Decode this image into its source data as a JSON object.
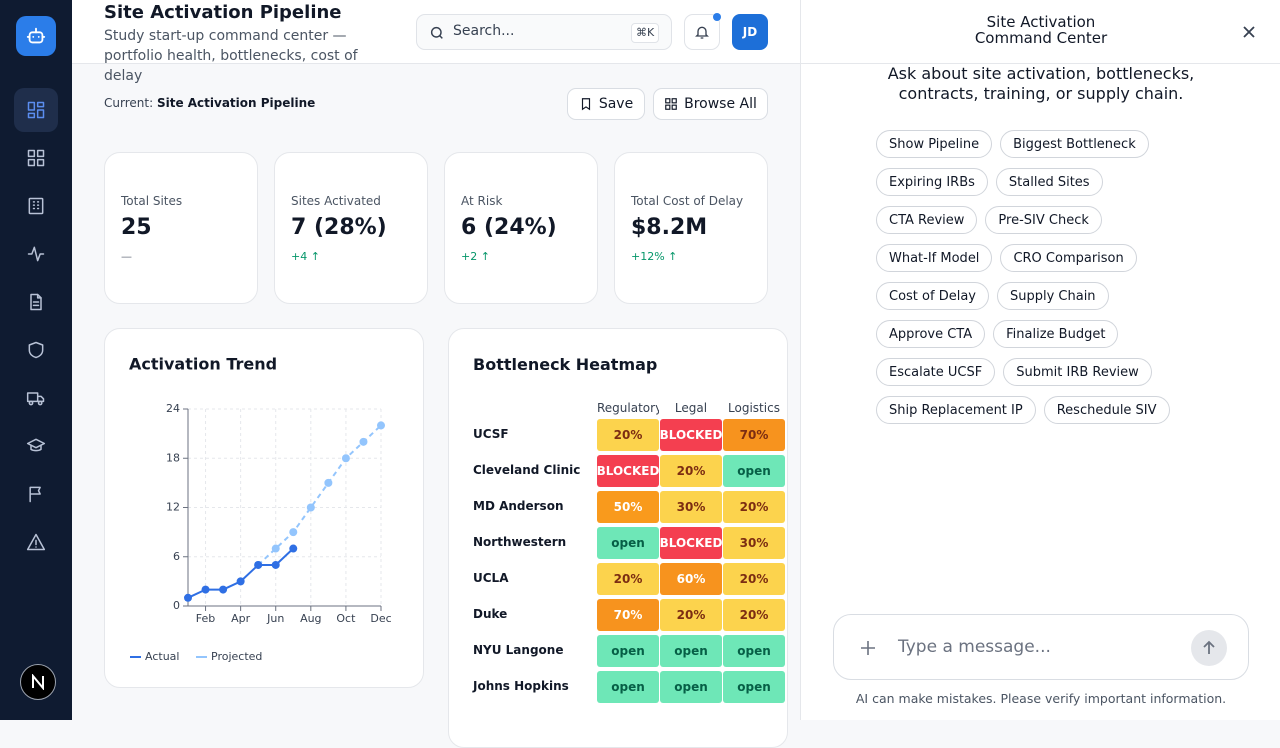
{
  "header": {
    "title": "Site Activation Pipeline",
    "subtitle": "Study start-up command center — portfolio health, bottlenecks, cost of delay",
    "search_placeholder": "Search...",
    "shortcut": "⌘K",
    "avatar": "JD"
  },
  "toolbar": {
    "current_label": "Current:",
    "current_value": "Site Activation Pipeline",
    "save": "Save",
    "browse": "Browse All"
  },
  "kpis": [
    {
      "label": "Total Sites",
      "value": "25",
      "delta": "—",
      "delta_color": "#6b7280"
    },
    {
      "label": "Sites Activated",
      "value": "7 (28%)",
      "delta": "+4 ↑",
      "delta_color": "#059669"
    },
    {
      "label": "At Risk",
      "value": "6 (24%)",
      "delta": "+2 ↑",
      "delta_color": "#059669"
    },
    {
      "label": "Total Cost of Delay",
      "value": "$8.2M",
      "delta": "+12% ↑",
      "delta_color": "#059669"
    }
  ],
  "activation_trend": {
    "type": "line",
    "title": "Activation Trend",
    "x": [
      null,
      "Feb",
      null,
      "Apr",
      null,
      "Jun",
      null,
      "Aug",
      null,
      "Oct",
      null,
      "Dec"
    ],
    "ylim": [
      0,
      24
    ],
    "yticks": [
      0,
      6,
      12,
      18,
      24
    ],
    "grid": true,
    "series": [
      {
        "name": "Actual",
        "color": "#2f6fe4",
        "dashed": false,
        "values": [
          1,
          2,
          2,
          3,
          5,
          5,
          7,
          null,
          null,
          null,
          null,
          null
        ]
      },
      {
        "name": "Projected",
        "color": "#93c5fd",
        "dashed": true,
        "values": [
          null,
          null,
          null,
          null,
          5,
          7,
          9,
          12,
          15,
          18,
          20,
          22
        ]
      }
    ]
  },
  "heatmap": {
    "title": "Bottleneck Heatmap",
    "columns": [
      "Regulatory",
      "Legal",
      "Logistics"
    ],
    "rows": [
      {
        "site": "UCSF",
        "cells": [
          {
            "label": "20%",
            "color": "#fcd34d",
            "text_color": "#7c2d12"
          },
          {
            "label": "BLOCKED",
            "color": "#f43f50",
            "text_color": "#ffffff"
          },
          {
            "label": "70%",
            "color": "#f7931e",
            "text_color": "#7c2d12"
          }
        ]
      },
      {
        "site": "Cleveland Clinic",
        "cells": [
          {
            "label": "BLOCKED",
            "color": "#f43f50",
            "text_color": "#ffffff"
          },
          {
            "label": "20%",
            "color": "#fcd34d",
            "text_color": "#7c2d12"
          },
          {
            "label": "open",
            "color": "#6ee7b7",
            "text_color": "#065f46"
          }
        ]
      },
      {
        "site": "MD Anderson",
        "cells": [
          {
            "label": "50%",
            "color": "#f99a1c",
            "text_color": "#ffffff"
          },
          {
            "label": "30%",
            "color": "#fcd34d",
            "text_color": "#7c2d12"
          },
          {
            "label": "20%",
            "color": "#fcd34d",
            "text_color": "#7c2d12"
          }
        ]
      },
      {
        "site": "Northwestern",
        "cells": [
          {
            "label": "open",
            "color": "#6ee7b7",
            "text_color": "#065f46"
          },
          {
            "label": "BLOCKED",
            "color": "#f43f50",
            "text_color": "#ffffff"
          },
          {
            "label": "30%",
            "color": "#fcd34d",
            "text_color": "#7c2d12"
          }
        ]
      },
      {
        "site": "UCLA",
        "cells": [
          {
            "label": "20%",
            "color": "#fcd34d",
            "text_color": "#7c2d12"
          },
          {
            "label": "60%",
            "color": "#f7931e",
            "text_color": "#ffffff"
          },
          {
            "label": "20%",
            "color": "#fcd34d",
            "text_color": "#7c2d12"
          }
        ]
      },
      {
        "site": "Duke",
        "cells": [
          {
            "label": "70%",
            "color": "#f7931e",
            "text_color": "#ffffff"
          },
          {
            "label": "20%",
            "color": "#fcd34d",
            "text_color": "#7c2d12"
          },
          {
            "label": "20%",
            "color": "#fcd34d",
            "text_color": "#7c2d12"
          }
        ]
      },
      {
        "site": "NYU Langone",
        "cells": [
          {
            "label": "open",
            "color": "#6ee7b7",
            "text_color": "#065f46"
          },
          {
            "label": "open",
            "color": "#6ee7b7",
            "text_color": "#065f46"
          },
          {
            "label": "open",
            "color": "#6ee7b7",
            "text_color": "#065f46"
          }
        ]
      },
      {
        "site": "Johns Hopkins",
        "cells": [
          {
            "label": "open",
            "color": "#6ee7b7",
            "text_color": "#065f46"
          },
          {
            "label": "open",
            "color": "#6ee7b7",
            "text_color": "#065f46"
          },
          {
            "label": "open",
            "color": "#6ee7b7",
            "text_color": "#065f46"
          }
        ]
      }
    ]
  },
  "assistant": {
    "title": "Site Activation Command Center",
    "intro": "Ask about site activation, bottlenecks, contracts, training, or supply chain.",
    "chips": [
      "Show Pipeline",
      "Biggest Bottleneck",
      "Expiring IRBs",
      "Stalled Sites",
      "CTA Review",
      "Pre-SIV Check",
      "What-If Model",
      "CRO Comparison",
      "Cost of Delay",
      "Supply Chain",
      "Approve CTA",
      "Finalize Budget",
      "Escalate UCSF",
      "Submit IRB Review",
      "Ship Replacement IP",
      "Reschedule SIV"
    ],
    "input_placeholder": "Type a message...",
    "disclaimer": "AI can make mistakes. Please verify important information."
  }
}
